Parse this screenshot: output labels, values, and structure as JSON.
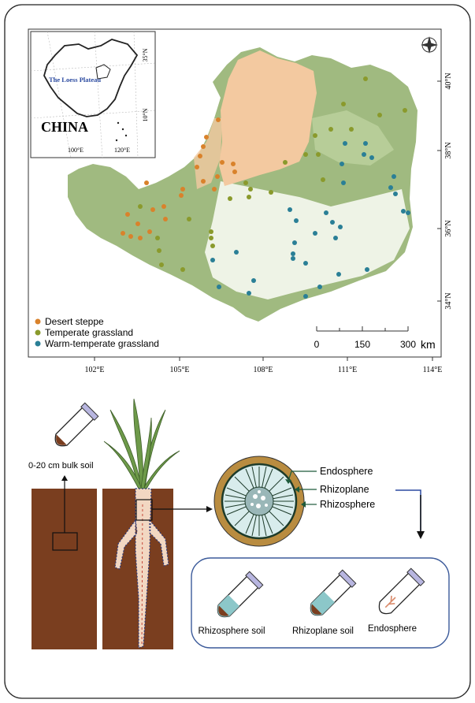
{
  "map": {
    "inset": {
      "country_label": "CHINA",
      "region_label": "The Loess Plateau",
      "lat_labels": [
        "35°N",
        "10°N"
      ],
      "lon_labels": [
        "100°E",
        "120°E"
      ]
    },
    "lat_labels": [
      "40°N",
      "38°N",
      "36°N",
      "34°N"
    ],
    "lon_labels": [
      "102°E",
      "105°E",
      "108°E",
      "111°E",
      "114°E"
    ],
    "legend": [
      {
        "label": "Desert steppe",
        "color": "#d9822b"
      },
      {
        "label": "Temperate grassland",
        "color": "#8a9a2c"
      },
      {
        "label": "Warm-temperate grassland",
        "color": "#2a7f96"
      }
    ],
    "scalebar": {
      "ticks": [
        "0",
        "150",
        "300"
      ],
      "unit": "km"
    },
    "colors": {
      "desert": "#f3c9a0",
      "vegetation": "#8fae6a",
      "veg_light": "#c8d9b0"
    }
  },
  "schematic": {
    "bulk_soil_label": "0-20 cm bulk soil",
    "root_layers": [
      "Endosphere",
      "Rhizoplane",
      "Rhizosphere"
    ],
    "samples": [
      "Rhizosphere soil",
      "Rhizoplane soil",
      "Endosphere"
    ],
    "colors": {
      "soil": "#7a3e1f",
      "root": "#f2d7c2",
      "leaf": "#6e9a4a",
      "liquid": "#8cc7c9",
      "frame": "#3b5a9a"
    }
  }
}
